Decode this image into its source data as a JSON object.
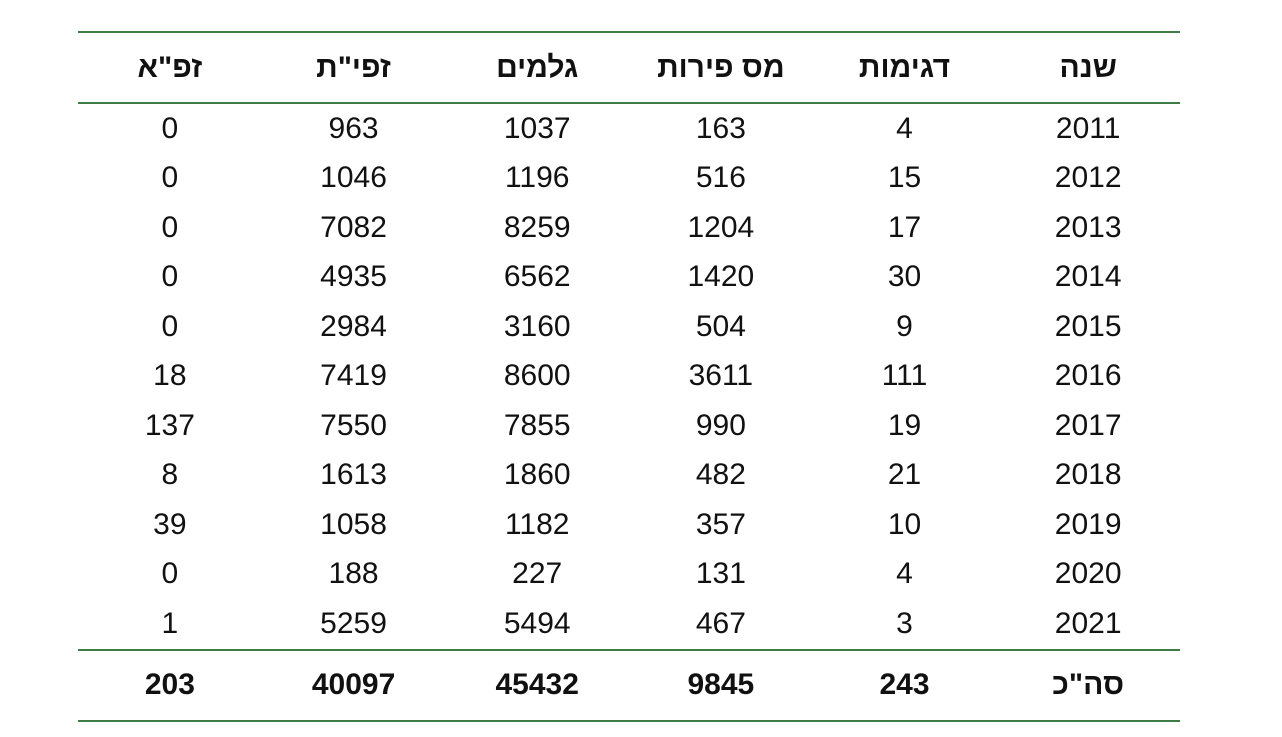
{
  "table": {
    "header": [
      "שנה",
      "דגימות",
      "מס פירות",
      "גלמים",
      "זפי\"ת",
      "זפ\"א"
    ],
    "rows": [
      [
        2011,
        4,
        163,
        1037,
        963,
        0
      ],
      [
        2012,
        15,
        516,
        1196,
        1046,
        0
      ],
      [
        2013,
        17,
        1204,
        8259,
        7082,
        0
      ],
      [
        2014,
        30,
        1420,
        6562,
        4935,
        0
      ],
      [
        2015,
        9,
        504,
        3160,
        2984,
        0
      ],
      [
        2016,
        111,
        3611,
        8600,
        7419,
        18
      ],
      [
        2017,
        19,
        990,
        7855,
        7550,
        137
      ],
      [
        2018,
        21,
        482,
        1860,
        1613,
        8
      ],
      [
        2019,
        10,
        357,
        1182,
        1058,
        39
      ],
      [
        2020,
        4,
        131,
        227,
        188,
        0
      ],
      [
        2021,
        3,
        467,
        5494,
        5259,
        1
      ]
    ],
    "footer": [
      "סה\"כ",
      243,
      9845,
      45432,
      40097,
      203
    ]
  }
}
